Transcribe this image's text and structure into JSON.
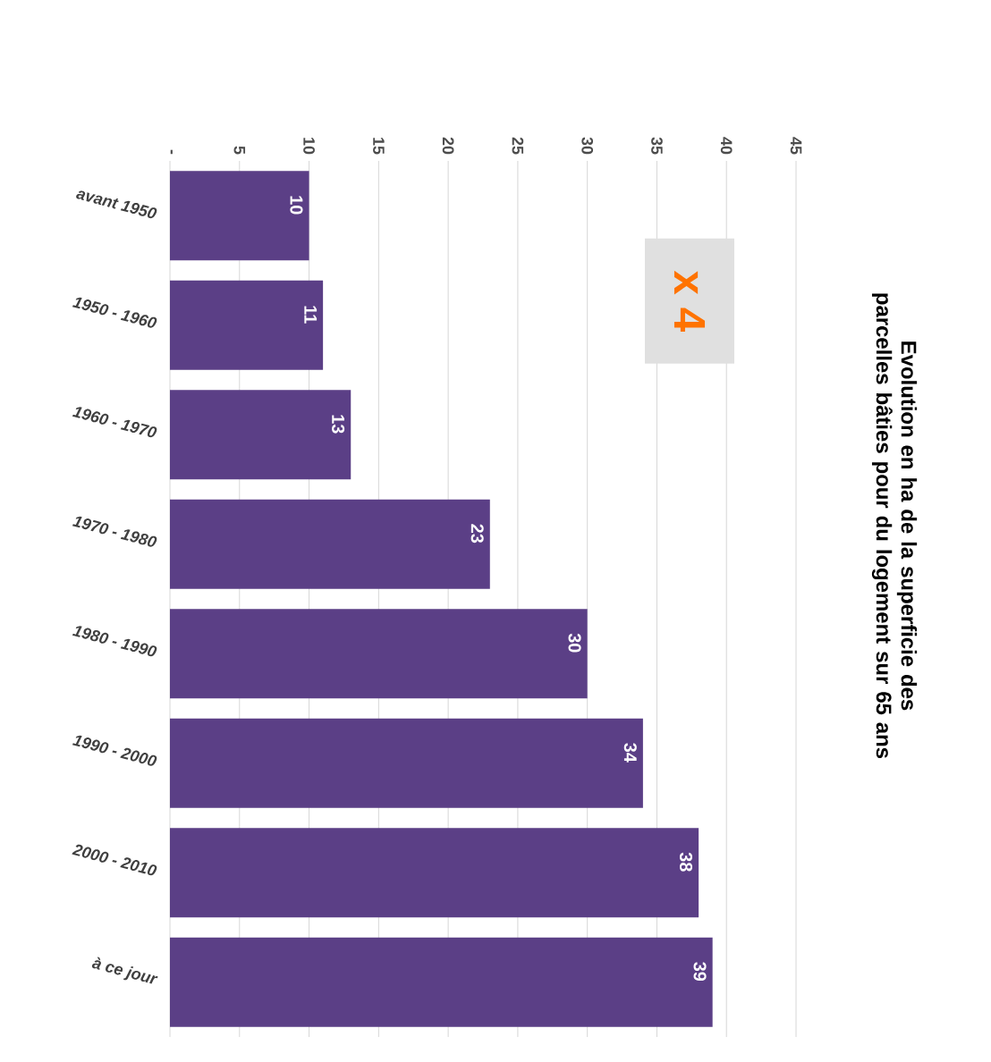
{
  "chart_data": {
    "type": "bar",
    "orientation": "horizontal",
    "title": "Evolution en ha de la superficie des parcelles bâties pour du logement sur 65 ans",
    "categories": [
      "avant 1950",
      "1950 - 1960",
      "1960 - 1970",
      "1970 - 1980",
      "1980 - 1990",
      "1990 - 2000",
      "2000 - 2010",
      "à ce jour"
    ],
    "values": [
      10,
      11,
      13,
      23,
      30,
      34,
      38,
      39
    ],
    "color": "#5b3f86",
    "xlim": [
      0,
      45
    ],
    "xticks": [
      {
        "value": 0,
        "label": "-"
      },
      5,
      10,
      15,
      20,
      25,
      30,
      35,
      40,
      45
    ],
    "grid": "x",
    "data_labels": true,
    "annotations": [
      "x 4"
    ]
  }
}
